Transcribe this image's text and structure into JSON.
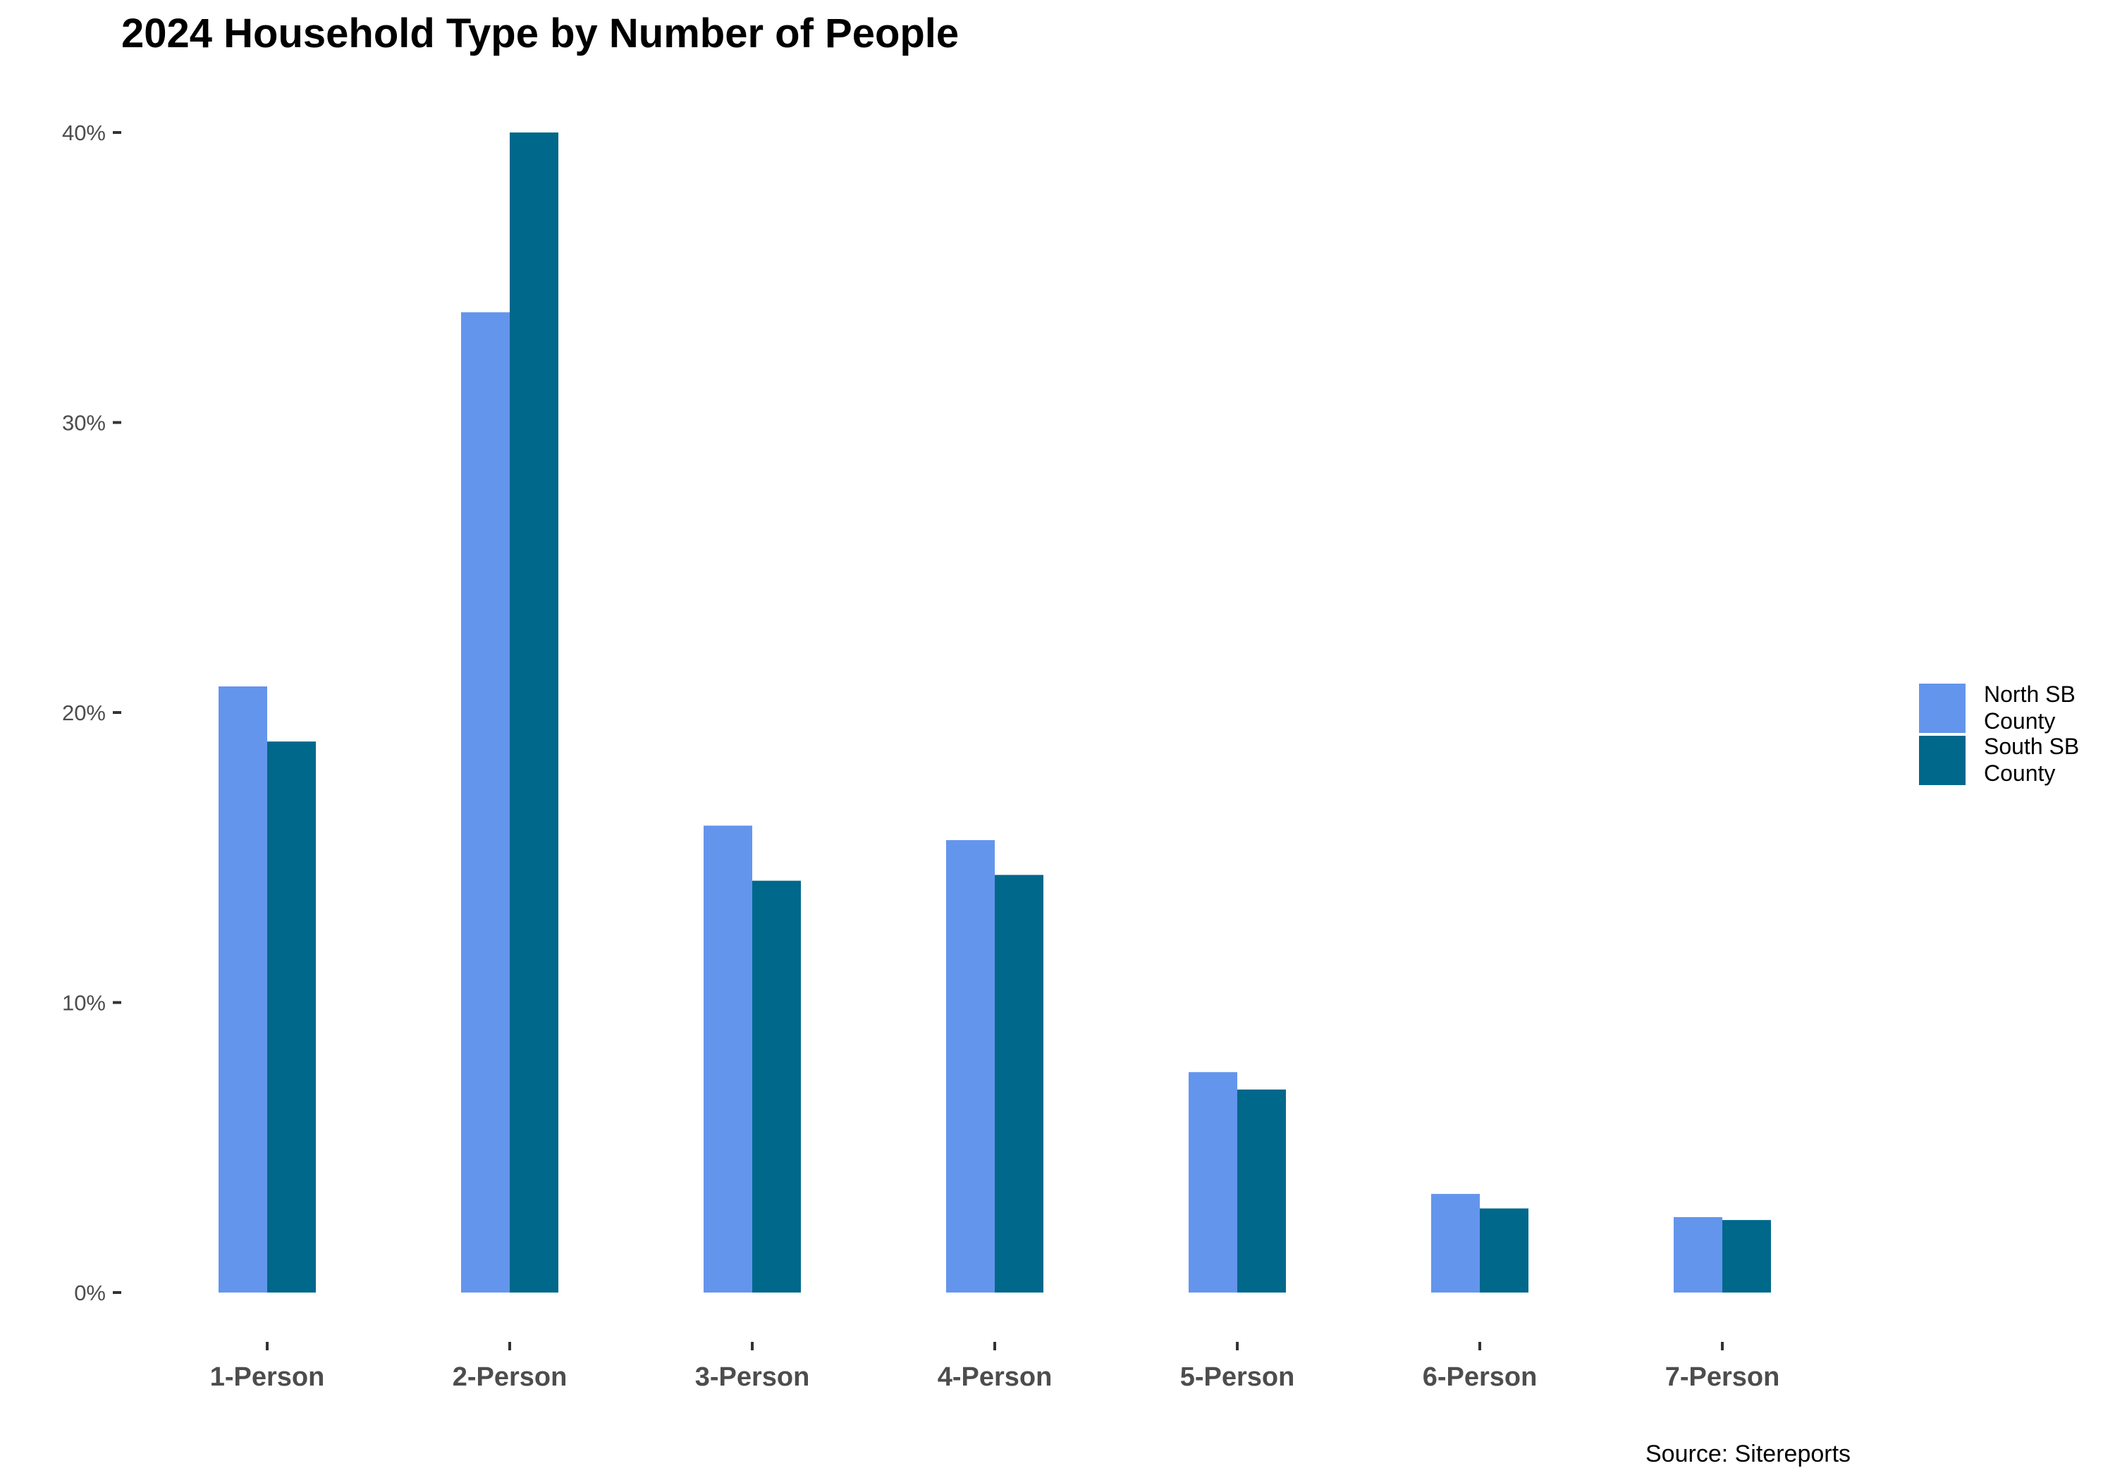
{
  "chart_data": {
    "type": "bar",
    "title": "2024 Household Type by Number of People",
    "caption": "Source: Sitereports",
    "categories": [
      "1-Person",
      "2-Person",
      "3-Person",
      "4-Person",
      "5-Person",
      "6-Person",
      "7-Person"
    ],
    "series": [
      {
        "name": "North SB County",
        "color": "#6495ED",
        "values": [
          20.9,
          33.8,
          16.1,
          15.6,
          7.6,
          3.4,
          2.6
        ]
      },
      {
        "name": "South SB County",
        "color": "#00688B",
        "values": [
          19.0,
          40.0,
          14.2,
          14.4,
          7.0,
          2.9,
          2.5
        ]
      }
    ],
    "yticks": [
      "0%",
      "10%",
      "20%",
      "30%",
      "40%"
    ],
    "ylim": [
      0,
      40
    ],
    "xlabel": "",
    "ylabel": "",
    "grid": false,
    "legend_position": "right"
  }
}
